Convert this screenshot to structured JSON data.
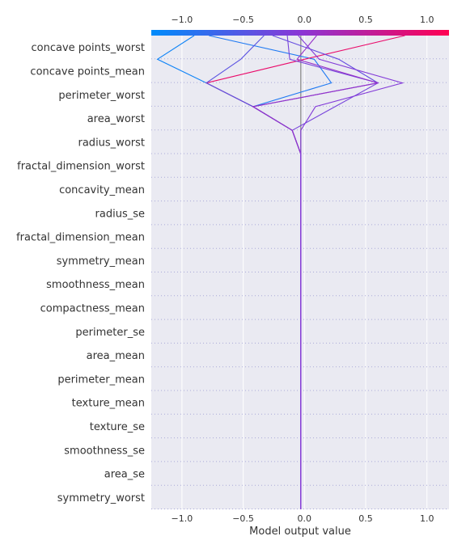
{
  "chart_data": {
    "type": "line",
    "title": "",
    "xlabel": "Model output value",
    "ylabel": "",
    "xlim": [
      -1.25,
      1.18
    ],
    "ticks": [
      -1.0,
      -0.5,
      0.0,
      0.5,
      1.0
    ],
    "tick_labels": [
      "−1.0",
      "−0.5",
      "0.0",
      "0.5",
      "1.0"
    ],
    "base_value": -0.03,
    "grid": true,
    "colorbar": {
      "position": "top",
      "low_color": "#008bfb",
      "high_color": "#ff0052",
      "range": [
        -1.0,
        1.0
      ]
    },
    "features": [
      "symmetry_worst",
      "area_se",
      "smoothness_se",
      "texture_se",
      "texture_mean",
      "perimeter_mean",
      "area_mean",
      "perimeter_se",
      "compactness_mean",
      "smoothness_mean",
      "symmetry_mean",
      "fractal_dimension_mean",
      "radius_se",
      "concavity_mean",
      "fractal_dimension_worst",
      "radius_worst",
      "area_worst",
      "perimeter_worst",
      "concave points_mean",
      "concave points_worst"
    ],
    "series": [
      {
        "values": [
          -0.03,
          -0.03,
          -0.03,
          -0.03,
          -0.03,
          -0.03,
          -0.03,
          -0.03,
          -0.03,
          -0.03,
          -0.03,
          -0.03,
          -0.03,
          -0.03,
          -0.03,
          -0.1,
          -0.42,
          -0.8,
          -1.2,
          -0.9
        ]
      },
      {
        "values": [
          -0.03,
          -0.03,
          -0.03,
          -0.03,
          -0.03,
          -0.03,
          -0.03,
          -0.03,
          -0.03,
          -0.03,
          -0.03,
          -0.03,
          -0.03,
          -0.03,
          -0.03,
          -0.1,
          -0.42,
          0.22,
          0.08,
          -0.78
        ]
      },
      {
        "values": [
          -0.03,
          -0.03,
          -0.03,
          -0.03,
          -0.03,
          -0.03,
          -0.03,
          -0.03,
          -0.03,
          -0.03,
          -0.03,
          -0.03,
          -0.03,
          -0.03,
          -0.03,
          -0.1,
          -0.42,
          -0.8,
          0.0,
          0.82
        ]
      },
      {
        "values": [
          -0.03,
          -0.03,
          -0.03,
          -0.03,
          -0.03,
          -0.03,
          -0.03,
          -0.03,
          -0.03,
          -0.03,
          -0.03,
          -0.03,
          -0.03,
          -0.03,
          -0.03,
          -0.1,
          -0.42,
          -0.8,
          -0.52,
          -0.33
        ]
      },
      {
        "values": [
          -0.03,
          -0.03,
          -0.03,
          -0.03,
          -0.03,
          -0.03,
          -0.03,
          -0.03,
          -0.03,
          -0.03,
          -0.03,
          -0.03,
          -0.03,
          -0.03,
          -0.03,
          -0.1,
          -0.42,
          0.6,
          0.28,
          -0.26
        ]
      },
      {
        "values": [
          -0.03,
          -0.03,
          -0.03,
          -0.03,
          -0.03,
          -0.03,
          -0.03,
          -0.03,
          -0.03,
          -0.03,
          -0.03,
          -0.03,
          -0.03,
          -0.03,
          -0.03,
          -0.1,
          0.25,
          0.6,
          -0.12,
          -0.14
        ]
      },
      {
        "values": [
          -0.03,
          -0.03,
          -0.03,
          -0.03,
          -0.03,
          -0.03,
          -0.03,
          -0.03,
          -0.03,
          -0.03,
          -0.03,
          -0.03,
          -0.03,
          -0.03,
          -0.03,
          -0.1,
          -0.42,
          0.6,
          -0.06,
          0.1
        ]
      },
      {
        "values": [
          -0.03,
          -0.03,
          -0.03,
          -0.03,
          -0.03,
          -0.03,
          -0.03,
          -0.03,
          -0.03,
          -0.03,
          -0.03,
          -0.03,
          -0.03,
          -0.03,
          -0.03,
          -0.03,
          0.09,
          0.8,
          0.12,
          -0.05
        ]
      }
    ]
  }
}
